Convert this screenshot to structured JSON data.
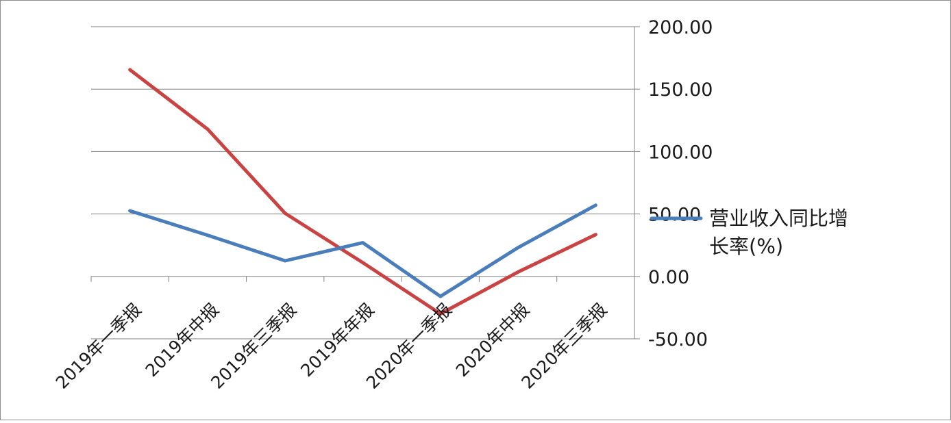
{
  "chart_data": {
    "type": "line",
    "categories": [
      "2019年一季报",
      "2019年中报",
      "2019年三季报",
      "2019年年报",
      "2020年一季报",
      "2020年中报",
      "2020年三季报"
    ],
    "series": [
      {
        "name": "营业收入同比增长率(%)",
        "color": "#4a7ebb",
        "values": [
          52.5,
          33,
          12.5,
          27,
          -16,
          23,
          57
        ]
      },
      {
        "color": "#c94343",
        "values": [
          165.5,
          118,
          50.5,
          11,
          -30,
          3.5,
          33.5
        ]
      }
    ],
    "yticks": [
      "200.00",
      "150.00",
      "100.00",
      "50.00",
      "0.00",
      "-50.00"
    ],
    "ylim": [
      -50,
      200
    ],
    "grid": true,
    "axis_position": "right",
    "legend": {
      "placement": "right",
      "lines": [
        "营业收入同比增",
        "长率(%)"
      ]
    },
    "title": "",
    "xlabel": "",
    "ylabel": ""
  }
}
